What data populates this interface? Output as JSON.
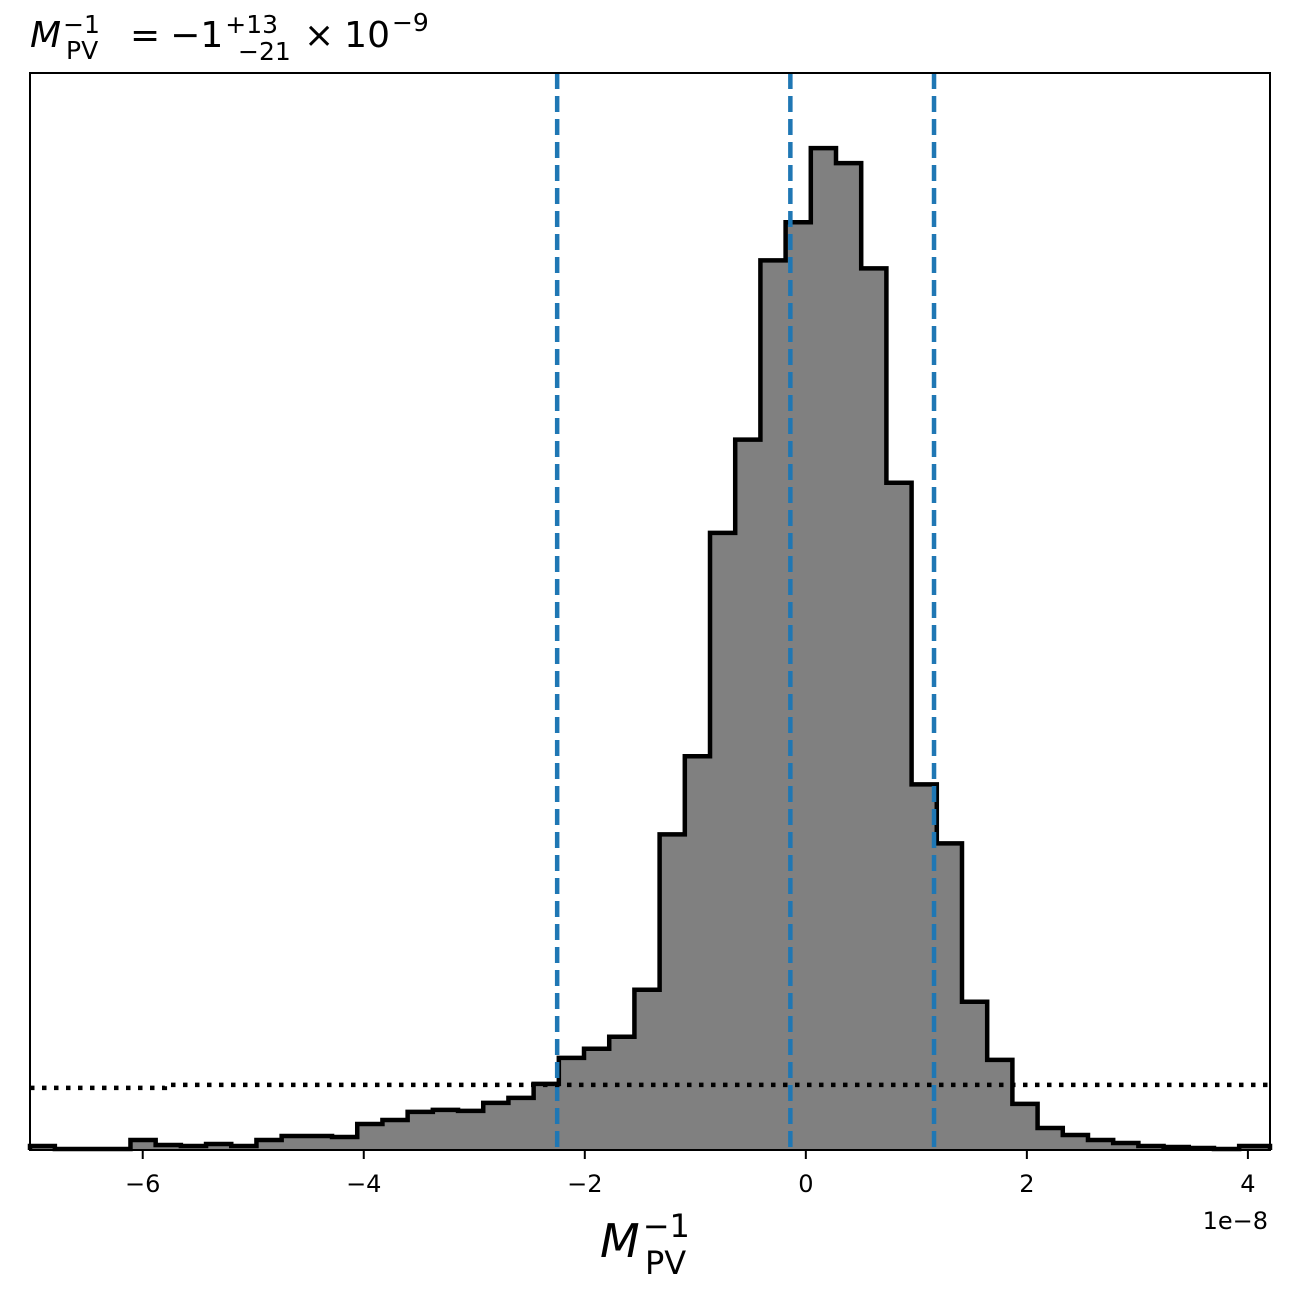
{
  "chart_data": {
    "type": "histogram",
    "title": {
      "symbol": "M",
      "symbol_sub": "PV",
      "symbol_sup": "−1",
      "equals": "=",
      "value": "−1",
      "err_plus": "+13",
      "err_minus": "−21",
      "times": "×",
      "scale_base": "10",
      "scale_exp": "−9"
    },
    "xlabel": {
      "symbol": "M",
      "sub": "PV",
      "sup": "−1"
    },
    "x_offset_label": "1e−8",
    "xlim": [
      -7.02,
      4.2
    ],
    "ylim": [
      0,
      1.075
    ],
    "x_ticks": [
      {
        "value": -6,
        "label": "−6"
      },
      {
        "value": -4,
        "label": "−4"
      },
      {
        "value": -2,
        "label": "−2"
      },
      {
        "value": 0,
        "label": "0"
      },
      {
        "value": 2,
        "label": "2"
      },
      {
        "value": 4,
        "label": "4"
      }
    ],
    "bin_edges": [
      -7.02,
      -6.795,
      -6.567,
      -6.339,
      -6.111,
      -5.883,
      -5.655,
      -5.427,
      -5.199,
      -4.971,
      -4.743,
      -4.515,
      -4.287,
      -4.059,
      -3.831,
      -3.603,
      -3.375,
      -3.147,
      -2.919,
      -2.691,
      -2.463,
      -2.235,
      -2.007,
      -1.779,
      -1.551,
      -1.323,
      -1.095,
      -0.867,
      -0.639,
      -0.411,
      -0.183,
      0.045,
      0.273,
      0.501,
      0.729,
      0.957,
      1.185,
      1.413,
      1.641,
      1.869,
      2.097,
      2.325,
      2.553,
      2.781,
      3.009,
      3.237,
      3.465,
      3.693,
      3.921,
      4.149,
      4.2
    ],
    "bin_heights": [
      0.004,
      0.001,
      0.001,
      0.001,
      0.01,
      0.005,
      0.004,
      0.006,
      0.004,
      0.01,
      0.014,
      0.014,
      0.013,
      0.026,
      0.03,
      0.038,
      0.04,
      0.039,
      0.047,
      0.052,
      0.066,
      0.092,
      0.101,
      0.113,
      0.16,
      0.315,
      0.393,
      0.616,
      0.709,
      0.888,
      0.926,
      1.0,
      0.985,
      0.88,
      0.666,
      0.365,
      0.306,
      0.148,
      0.09,
      0.046,
      0.022,
      0.015,
      0.01,
      0.007,
      0.004,
      0.003,
      0.002,
      0.001,
      0.004,
      0.004
    ],
    "fill_color": "#808080",
    "edge_color": "#000000",
    "vlines": {
      "style": "dashed",
      "color": "#1f77b4",
      "values": [
        -2.25,
        -0.14,
        1.16
      ]
    },
    "prior_line": {
      "style": "dotted",
      "color": "#000000",
      "x": [
        -7.02,
        -5.8,
        -5.8,
        4.2
      ],
      "y": [
        0.062,
        0.062,
        0.065,
        0.065
      ]
    },
    "grid": false,
    "y_ticks_visible": false
  }
}
